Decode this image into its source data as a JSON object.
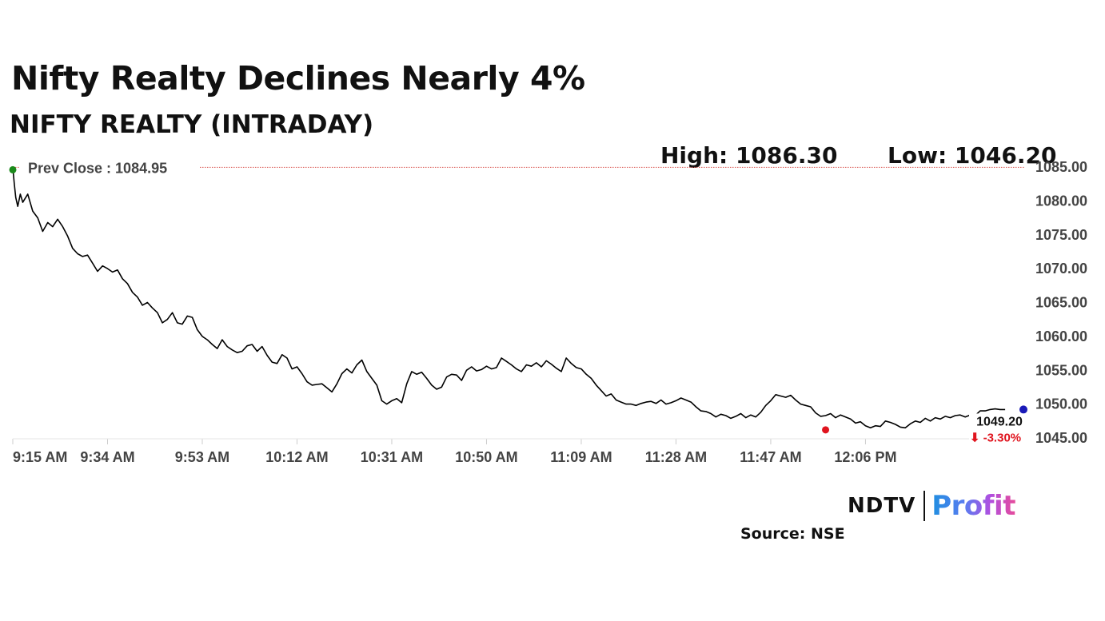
{
  "header": {
    "title": "Nifty Realty Declines Nearly 4%",
    "subtitle": "NIFTY REALTY (INTRADAY)"
  },
  "stats": {
    "high_label": "High: 1086.30",
    "low_label": "Low: 1046.20"
  },
  "brand": {
    "ndtv": "NDTV",
    "profit": "Profit"
  },
  "source": "Source: NSE",
  "chart_data": {
    "type": "line",
    "title": "NIFTY REALTY (INTRADAY)",
    "xlabel": "",
    "ylabel": "",
    "x_ticks": [
      "9:15 AM",
      "9:34 AM",
      "9:53 AM",
      "10:12 AM",
      "10:31 AM",
      "10:50 AM",
      "11:09 AM",
      "11:28 AM",
      "11:47 AM",
      "12:06 PM"
    ],
    "y_ticks": [
      "1045.00",
      "1050.00",
      "1055.00",
      "1060.00",
      "1065.00",
      "1070.00",
      "1075.00",
      "1080.00",
      "1085.00"
    ],
    "ylim": [
      1045,
      1085
    ],
    "x_unit": "minutes since 9:15 AM",
    "xlim": [
      0,
      203
    ],
    "prev_close": {
      "label": "Prev Close : 1084.95",
      "value": 1084.95
    },
    "last": {
      "label": "1049.20",
      "change": "⬇ -3.30%",
      "value": 1049.2
    },
    "min_marker": {
      "x": 163,
      "value": 1046.2
    },
    "colors": {
      "line": "#000000",
      "prev_close": "#d9534f",
      "start_dot": "#1a8a1a",
      "low_dot": "#e0141e",
      "end_dot": "#1a1ab8",
      "change": "#e0141e"
    },
    "series": [
      {
        "points": [
          [
            0,
            1084.9
          ],
          [
            0.3,
            1082.5
          ],
          [
            0.6,
            1080.5
          ],
          [
            1,
            1079.2
          ],
          [
            1.5,
            1081.0
          ],
          [
            2,
            1079.8
          ],
          [
            3,
            1081.0
          ],
          [
            4,
            1078.5
          ],
          [
            5,
            1077.5
          ],
          [
            6,
            1075.5
          ],
          [
            7,
            1076.8
          ],
          [
            8,
            1076.2
          ],
          [
            9,
            1077.3
          ],
          [
            10,
            1076.2
          ],
          [
            11,
            1074.8
          ],
          [
            12,
            1073.0
          ],
          [
            13,
            1072.2
          ],
          [
            14,
            1071.8
          ],
          [
            15,
            1072.0
          ],
          [
            16,
            1070.8
          ],
          [
            17,
            1069.6
          ],
          [
            18,
            1070.4
          ],
          [
            19,
            1070.0
          ],
          [
            20,
            1069.5
          ],
          [
            21,
            1069.8
          ],
          [
            22,
            1068.5
          ],
          [
            23,
            1067.8
          ],
          [
            24,
            1066.5
          ],
          [
            25,
            1065.8
          ],
          [
            26,
            1064.6
          ],
          [
            27,
            1065.0
          ],
          [
            28,
            1064.2
          ],
          [
            29,
            1063.5
          ],
          [
            30,
            1062.0
          ],
          [
            31,
            1062.5
          ],
          [
            32,
            1063.5
          ],
          [
            33,
            1062.0
          ],
          [
            34,
            1061.8
          ],
          [
            35,
            1063.0
          ],
          [
            36,
            1062.8
          ],
          [
            37,
            1061.0
          ],
          [
            38,
            1060.0
          ],
          [
            39,
            1059.5
          ],
          [
            40,
            1058.8
          ],
          [
            41,
            1058.2
          ],
          [
            42,
            1059.5
          ],
          [
            43,
            1058.5
          ],
          [
            44,
            1058.0
          ],
          [
            45,
            1057.6
          ],
          [
            46,
            1057.8
          ],
          [
            47,
            1058.6
          ],
          [
            48,
            1058.8
          ],
          [
            49,
            1057.8
          ],
          [
            50,
            1058.5
          ],
          [
            51,
            1057.2
          ],
          [
            52,
            1056.2
          ],
          [
            53,
            1056.0
          ],
          [
            54,
            1057.3
          ],
          [
            55,
            1056.8
          ],
          [
            56,
            1055.2
          ],
          [
            57,
            1055.5
          ],
          [
            58,
            1054.5
          ],
          [
            59,
            1053.3
          ],
          [
            60,
            1052.8
          ],
          [
            61,
            1052.9
          ],
          [
            62,
            1053.0
          ],
          [
            63,
            1052.4
          ],
          [
            64,
            1051.8
          ],
          [
            65,
            1053.0
          ],
          [
            66,
            1054.5
          ],
          [
            67,
            1055.2
          ],
          [
            68,
            1054.6
          ],
          [
            69,
            1055.8
          ],
          [
            70,
            1056.5
          ],
          [
            71,
            1054.8
          ],
          [
            72,
            1053.8
          ],
          [
            73,
            1052.8
          ],
          [
            74,
            1050.5
          ],
          [
            75,
            1050.0
          ],
          [
            76,
            1050.5
          ],
          [
            77,
            1050.8
          ],
          [
            78,
            1050.2
          ],
          [
            79,
            1053.0
          ],
          [
            80,
            1054.8
          ],
          [
            81,
            1054.4
          ],
          [
            82,
            1054.7
          ],
          [
            83,
            1053.8
          ],
          [
            84,
            1052.8
          ],
          [
            85,
            1052.2
          ],
          [
            86,
            1052.5
          ],
          [
            87,
            1054.0
          ],
          [
            88,
            1054.4
          ],
          [
            89,
            1054.3
          ],
          [
            90,
            1053.5
          ],
          [
            91,
            1055.0
          ],
          [
            92,
            1055.5
          ],
          [
            93,
            1054.9
          ],
          [
            94,
            1055.1
          ],
          [
            95,
            1055.6
          ],
          [
            96,
            1055.2
          ],
          [
            97,
            1055.4
          ],
          [
            98,
            1056.8
          ],
          [
            99,
            1056.3
          ],
          [
            100,
            1055.8
          ],
          [
            101,
            1055.2
          ],
          [
            102,
            1054.8
          ],
          [
            103,
            1055.8
          ],
          [
            104,
            1055.6
          ],
          [
            105,
            1056.1
          ],
          [
            106,
            1055.5
          ],
          [
            107,
            1056.4
          ],
          [
            108,
            1055.9
          ],
          [
            109,
            1055.3
          ],
          [
            110,
            1054.8
          ],
          [
            111,
            1056.8
          ],
          [
            112,
            1056.0
          ],
          [
            113,
            1055.4
          ],
          [
            114,
            1055.2
          ],
          [
            115,
            1054.4
          ],
          [
            116,
            1053.8
          ],
          [
            117,
            1052.8
          ],
          [
            118,
            1052.0
          ],
          [
            119,
            1051.2
          ],
          [
            120,
            1051.5
          ],
          [
            121,
            1050.6
          ],
          [
            122,
            1050.3
          ],
          [
            123,
            1050.0
          ],
          [
            124,
            1050.0
          ],
          [
            125,
            1049.8
          ],
          [
            126,
            1050.1
          ],
          [
            127,
            1050.3
          ],
          [
            128,
            1050.4
          ],
          [
            129,
            1050.1
          ],
          [
            130,
            1050.6
          ],
          [
            131,
            1050.0
          ],
          [
            132,
            1050.2
          ],
          [
            133,
            1050.5
          ],
          [
            134,
            1050.9
          ],
          [
            135,
            1050.6
          ],
          [
            136,
            1050.3
          ],
          [
            137,
            1049.6
          ],
          [
            138,
            1049.0
          ],
          [
            139,
            1048.9
          ],
          [
            140,
            1048.6
          ],
          [
            141,
            1048.1
          ],
          [
            142,
            1048.5
          ],
          [
            143,
            1048.3
          ],
          [
            144,
            1047.9
          ],
          [
            145,
            1048.2
          ],
          [
            146,
            1048.6
          ],
          [
            147,
            1048.0
          ],
          [
            148,
            1048.4
          ],
          [
            149,
            1048.1
          ],
          [
            150,
            1048.8
          ],
          [
            151,
            1049.8
          ],
          [
            152,
            1050.5
          ],
          [
            153,
            1051.4
          ],
          [
            154,
            1051.2
          ],
          [
            155,
            1051.0
          ],
          [
            156,
            1051.3
          ],
          [
            157,
            1050.6
          ],
          [
            158,
            1050.0
          ],
          [
            159,
            1049.8
          ],
          [
            160,
            1049.6
          ],
          [
            161,
            1048.7
          ],
          [
            162,
            1048.2
          ],
          [
            163,
            1048.3
          ],
          [
            164,
            1048.6
          ],
          [
            165,
            1048.0
          ],
          [
            166,
            1048.4
          ],
          [
            167,
            1048.1
          ],
          [
            168,
            1047.8
          ],
          [
            169,
            1047.2
          ],
          [
            170,
            1047.4
          ],
          [
            171,
            1046.8
          ],
          [
            172,
            1046.5
          ],
          [
            173,
            1046.8
          ],
          [
            174,
            1046.7
          ],
          [
            175,
            1047.5
          ],
          [
            176,
            1047.3
          ],
          [
            177,
            1047.0
          ],
          [
            178,
            1046.6
          ],
          [
            179,
            1046.5
          ],
          [
            180,
            1047.1
          ],
          [
            181,
            1047.5
          ],
          [
            182,
            1047.3
          ],
          [
            183,
            1047.9
          ],
          [
            184,
            1047.5
          ],
          [
            185,
            1048.0
          ],
          [
            186,
            1047.8
          ],
          [
            187,
            1048.2
          ],
          [
            188,
            1048.0
          ],
          [
            189,
            1048.3
          ],
          [
            190,
            1048.4
          ],
          [
            191,
            1048.1
          ],
          [
            192,
            1048.4
          ],
          [
            193,
            1048.3
          ],
          [
            194,
            1049.0
          ],
          [
            195,
            1049.0
          ],
          [
            196,
            1049.2
          ],
          [
            197,
            1049.3
          ],
          [
            198,
            1049.2
          ],
          [
            199,
            1049.2
          ]
        ]
      }
    ]
  }
}
